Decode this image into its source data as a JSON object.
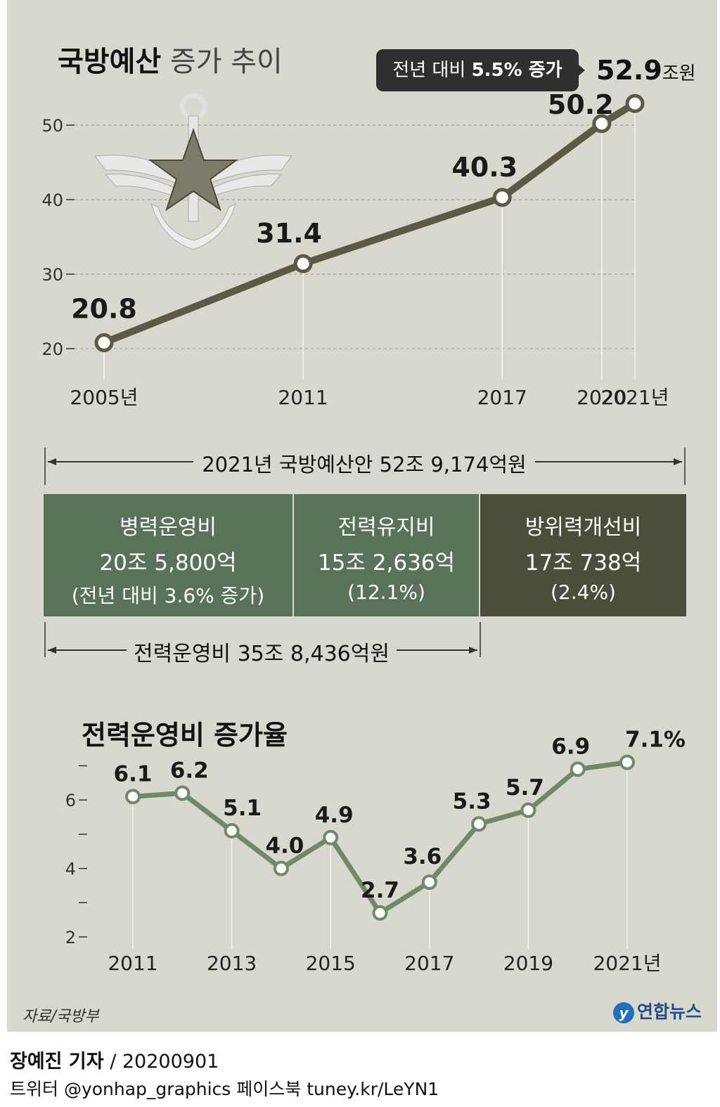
{
  "title_bold": "국방예산",
  "title_light": "증가 추이",
  "callout": {
    "text": "전년 대비 ",
    "pct": "5.5% 증가"
  },
  "final_value": {
    "num": "52.9",
    "unit": "조원"
  },
  "chart_data": [
    {
      "type": "line",
      "title": "국방예산 증가 추이",
      "unit": "조원",
      "x": [
        2005,
        2011,
        2017,
        2020,
        2021
      ],
      "x_labels": [
        "2005년",
        "2011",
        "2017",
        "2020",
        "2021년"
      ],
      "values": [
        20.8,
        31.4,
        40.3,
        50.2,
        52.9
      ],
      "value_labels": [
        "20.8",
        "31.4",
        "40.3",
        "50.2",
        "52.9"
      ],
      "yticks": [
        20,
        30,
        40,
        50
      ],
      "ylim": [
        20,
        53
      ]
    },
    {
      "type": "line",
      "title": "전력운영비 증가율",
      "unit": "%",
      "x": [
        2011,
        2012,
        2013,
        2014,
        2015,
        2016,
        2017,
        2018,
        2019,
        2020,
        2021
      ],
      "values": [
        6.1,
        6.2,
        5.1,
        4.0,
        4.9,
        2.7,
        3.6,
        5.3,
        5.7,
        6.9,
        7.1
      ],
      "value_labels": [
        "6.1",
        "6.2",
        "5.1",
        "4.0",
        "4.9",
        "2.7",
        "3.6",
        "5.3",
        "5.7",
        "6.9",
        "7.1%"
      ],
      "x_ticks": [
        2011,
        2013,
        2015,
        2017,
        2019,
        2021
      ],
      "x_labels": [
        "2011",
        "2013",
        "2015",
        "2017",
        "2019",
        "2021년"
      ],
      "yticks": [
        2,
        4,
        6
      ],
      "ylim": [
        2,
        8
      ]
    }
  ],
  "budget": {
    "total_label": "2021년 국방예산안 52조 9,174억원",
    "segments": [
      {
        "name": "병력운영비",
        "amount": "20조 5,800억",
        "note": "(전년 대비 3.6% 증가)"
      },
      {
        "name": "전력유지비",
        "amount": "15조 2,636억",
        "note": "(12.1%)"
      },
      {
        "name": "방위력개선비",
        "amount": "17조 738억",
        "note": "(2.4%)"
      }
    ],
    "subtotal_label": "전력운영비 35조 8,436억원"
  },
  "title2": "전력운영비 증가율",
  "source": "자료/국방부",
  "logo": "연합뉴스",
  "credit": {
    "name": "장예진 기자",
    "date": " / 20200901"
  },
  "social": "트위터 @yonhap_graphics  페이스북 tuney.kr/LeYN1",
  "colors": {
    "panel": "#d9d8cf",
    "line1": "#5b5a46",
    "line2": "#6e8a68",
    "seg_green": "#58735a",
    "seg_dark": "#4d4d3b"
  }
}
